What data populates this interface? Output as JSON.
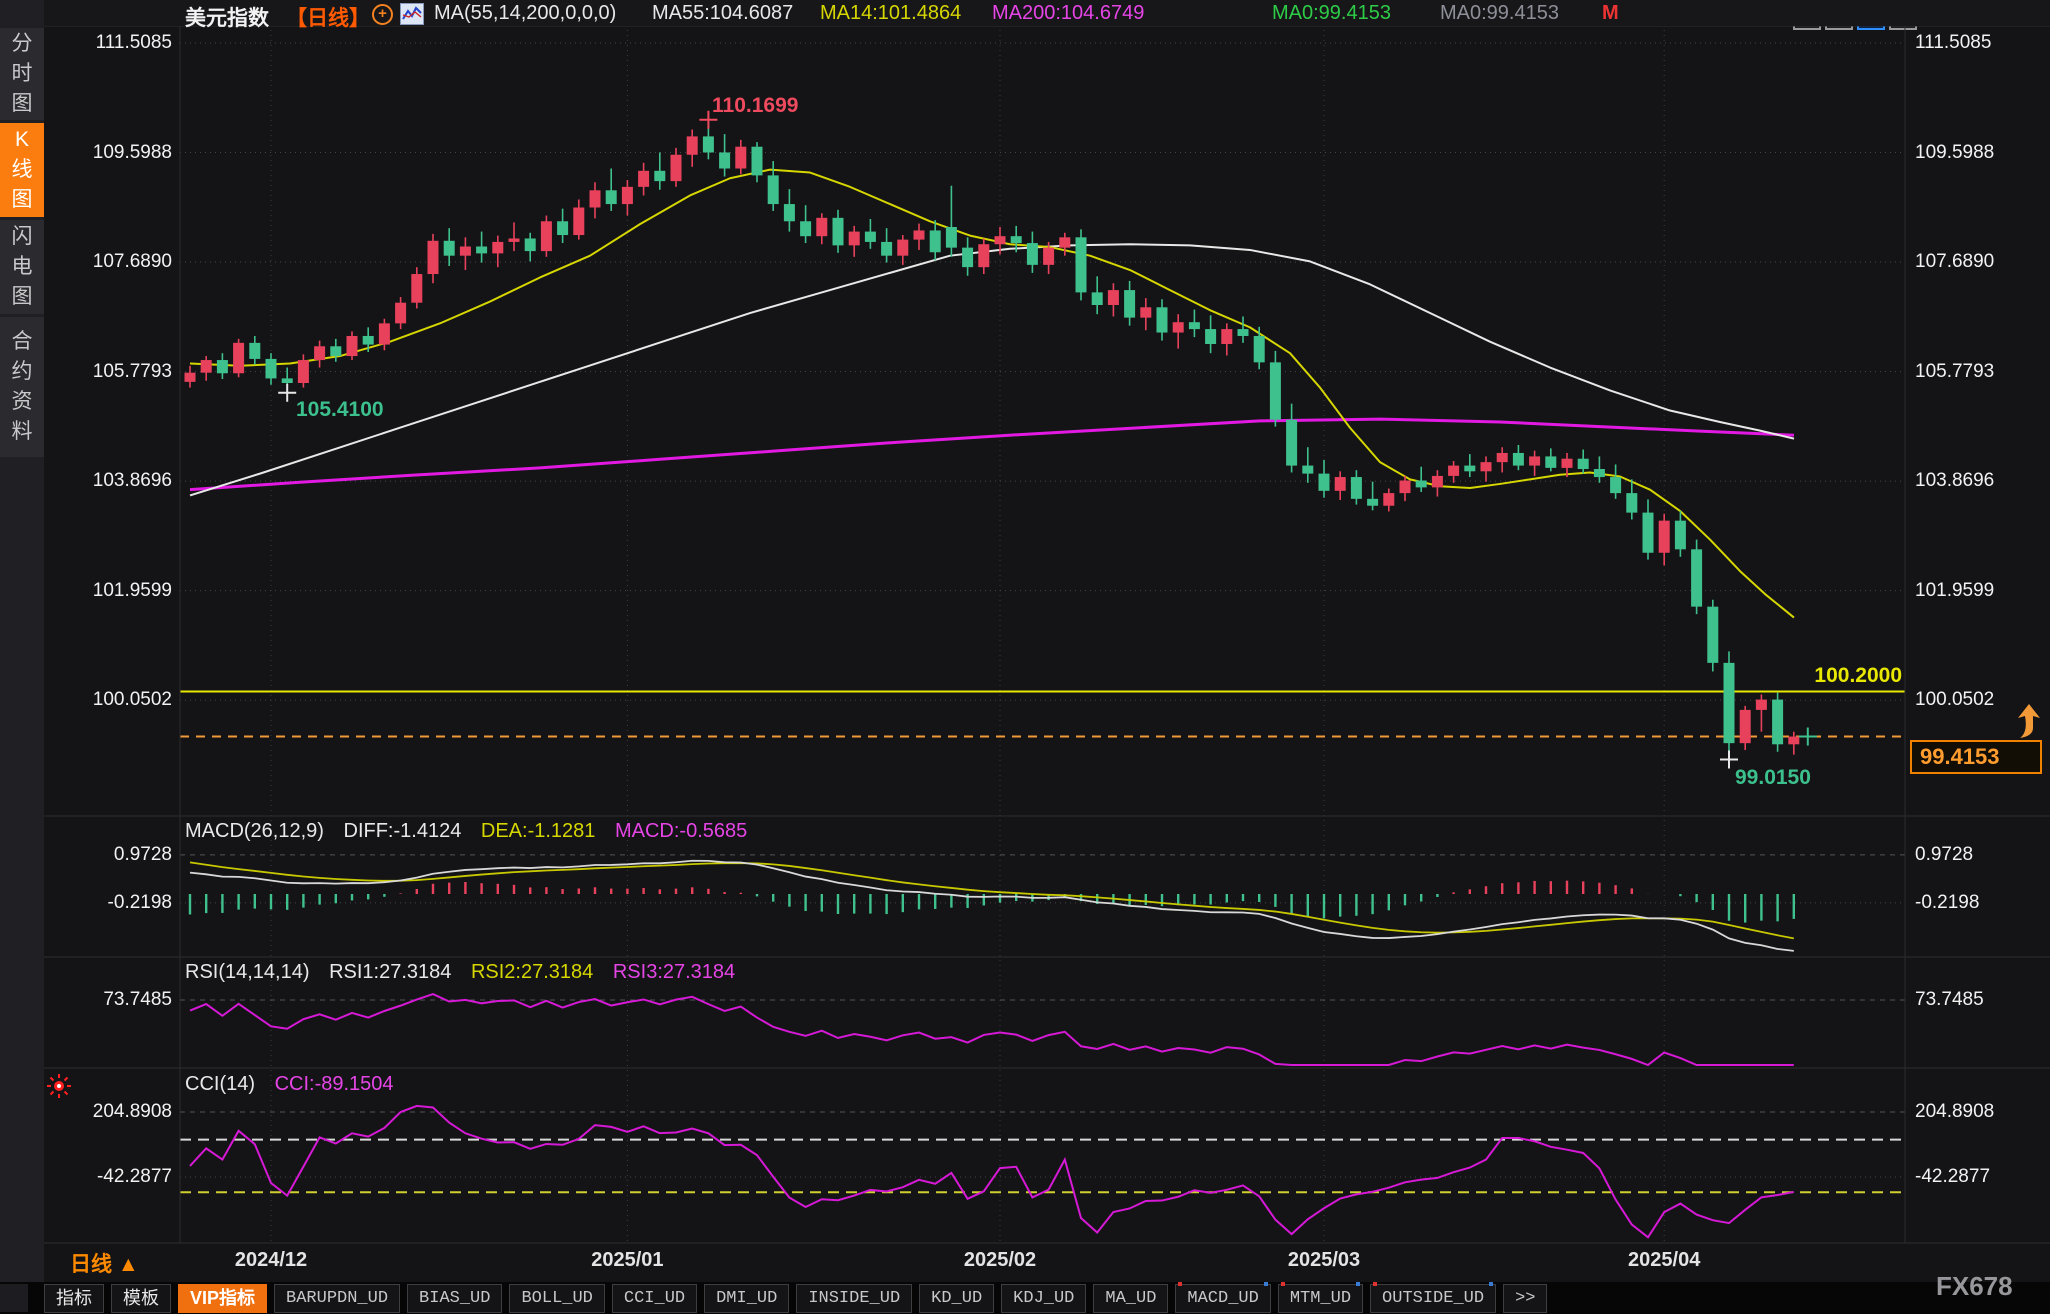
{
  "header": {
    "symbol": "美元指数",
    "period_tag": "【日线】",
    "ma_settings": "MA(55,14,200,0,0,0)",
    "ma55": "MA55:104.6087",
    "ma14": "MA14:101.4864",
    "ma200": "MA200:104.6749",
    "ma0_green": "MA0:99.4153",
    "ma0_gray": "MA0:99.4153",
    "m_flag": "M",
    "plus_icon": "circled-plus",
    "chart_icon": "mini-line-chart"
  },
  "top_icons": [
    {
      "name": "pan-cross-icon",
      "active": false
    },
    {
      "name": "axis-scale-icon",
      "active": false
    },
    {
      "name": "axis-play-icon",
      "active": true
    },
    {
      "name": "shift-right-icon",
      "active": false
    }
  ],
  "sidebar": {
    "tabs": [
      {
        "label": "分时图",
        "active": false
      },
      {
        "label": "K线图",
        "active": true
      },
      {
        "label": "闪电图",
        "active": false
      },
      {
        "label": "合约资料",
        "active": false
      }
    ]
  },
  "panels": {
    "macd": {
      "title": "MACD(26,12,9)",
      "diff": "DIFF:-1.4124",
      "dea": "DEA:-1.1281",
      "macd": "MACD:-0.5685"
    },
    "rsi": {
      "title": "RSI(14,14,14)",
      "rsi1": "RSI1:27.3184",
      "rsi2": "RSI2:27.3184",
      "rsi3": "RSI3:27.3184"
    },
    "cci": {
      "title": "CCI(14)",
      "cci": "CCI:-89.1504"
    }
  },
  "annotations": {
    "high_label": "110.1699",
    "dec_low_label": "105.4100",
    "apr_low_label": "99.0150",
    "yellow_line_label": "100.2000",
    "last_price_label": "99.4153"
  },
  "xaxis": {
    "period": "日线 ▲",
    "dates": [
      "2024/12",
      "2025/01",
      "2025/02",
      "2025/03",
      "2025/04"
    ]
  },
  "toolbar": {
    "tabs": [
      {
        "label": "指标",
        "cn": true
      },
      {
        "label": "模板",
        "cn": true
      },
      {
        "label": "VIP指标",
        "cn": true,
        "active": true
      },
      {
        "label": "BARUPDN_UD"
      },
      {
        "label": "BIAS_UD"
      },
      {
        "label": "BOLL_UD"
      },
      {
        "label": "CCI_UD"
      },
      {
        "label": "DMI_UD"
      },
      {
        "label": "INSIDE_UD"
      },
      {
        "label": "KD_UD"
      },
      {
        "label": "KDJ_UD"
      },
      {
        "label": "MA_UD"
      },
      {
        "label": "MACD_UD",
        "marked": true
      },
      {
        "label": "MTM_UD",
        "marked": true
      },
      {
        "label": "OUTSIDE_UD",
        "marked": true
      },
      {
        "label": ">>"
      }
    ]
  },
  "watermark": "FX678",
  "colors": {
    "up_candle": "#e8415c",
    "down_candle": "#3fc18e",
    "ma14": "#d6d600",
    "ma55": "#e8e8e8",
    "ma200": "#e219e2",
    "indicator_magenta": "#d619d6",
    "accent_orange": "#fb7d10",
    "yellow_line": "#e8e800",
    "orange_dashed": "#f29a38"
  },
  "chart_data": {
    "type": "candlestick",
    "title": "美元指数 日线",
    "price_axis_labels": [
      111.5085,
      109.5988,
      107.689,
      105.7793,
      103.8696,
      101.9599,
      100.0502
    ],
    "macd_axis_labels": [
      0.9728,
      -0.2198
    ],
    "rsi_axis_labels": [
      73.7485
    ],
    "cci_axis_labels": [
      204.8908,
      -42.2877
    ],
    "cci_ref_lines": [
      {
        "value": 100,
        "color": "#d8d8d8"
      },
      {
        "value": -100,
        "color": "#cfcf30"
      }
    ],
    "dates": [
      "2024/12",
      "2025/01",
      "2025/02",
      "2025/03",
      "2025/04"
    ],
    "date_candle_index": [
      5,
      27,
      50,
      70,
      91
    ],
    "hlines": [
      {
        "value": 100.2,
        "style": "solid",
        "color": "#e8e800"
      },
      {
        "value": 99.4153,
        "style": "dashed",
        "color": "#f29a38"
      }
    ],
    "markers": [
      {
        "type": "high",
        "candle": 32,
        "price": 110.1699,
        "color": "#ef4a5e"
      },
      {
        "type": "low",
        "candle": 6,
        "price": 105.41,
        "color": "#e8e8e8"
      },
      {
        "type": "low",
        "candle": 95,
        "price": 99.015,
        "color": "#e8e8e8"
      },
      {
        "type": "last",
        "candle": 99,
        "price": 99.4153,
        "color": "#3fc18e"
      }
    ],
    "ma_values": {
      "ma55": 104.6087,
      "ma14": 101.4864,
      "ma200": 104.6749,
      "ma0": 99.4153
    },
    "indicator_values": {
      "macd": {
        "diff": -1.4124,
        "dea": -1.1281,
        "hist": -0.5685
      },
      "rsi": [
        27.3184,
        27.3184,
        27.3184
      ],
      "cci": -89.1504
    },
    "candles": [
      [
        105.6,
        105.88,
        105.5,
        105.76
      ],
      [
        105.76,
        106.05,
        105.62,
        105.98
      ],
      [
        105.98,
        106.1,
        105.65,
        105.75
      ],
      [
        105.75,
        106.35,
        105.68,
        106.28
      ],
      [
        106.28,
        106.4,
        105.9,
        106.0
      ],
      [
        106.0,
        106.1,
        105.55,
        105.66
      ],
      [
        105.66,
        105.85,
        105.41,
        105.58
      ],
      [
        105.58,
        106.08,
        105.5,
        105.98
      ],
      [
        105.98,
        106.32,
        105.85,
        106.22
      ],
      [
        106.22,
        106.35,
        105.95,
        106.05
      ],
      [
        106.05,
        106.48,
        105.98,
        106.4
      ],
      [
        106.4,
        106.55,
        106.12,
        106.25
      ],
      [
        106.25,
        106.7,
        106.15,
        106.62
      ],
      [
        106.62,
        107.08,
        106.52,
        106.98
      ],
      [
        106.98,
        107.6,
        106.88,
        107.48
      ],
      [
        107.48,
        108.18,
        107.32,
        108.06
      ],
      [
        108.06,
        108.28,
        107.62,
        107.8
      ],
      [
        107.8,
        108.12,
        107.55,
        107.96
      ],
      [
        107.96,
        108.22,
        107.68,
        107.84
      ],
      [
        107.84,
        108.15,
        107.6,
        108.04
      ],
      [
        108.04,
        108.38,
        107.88,
        108.1
      ],
      [
        108.1,
        108.2,
        107.7,
        107.88
      ],
      [
        107.88,
        108.5,
        107.78,
        108.4
      ],
      [
        108.4,
        108.62,
        108.02,
        108.16
      ],
      [
        108.16,
        108.78,
        108.08,
        108.64
      ],
      [
        108.64,
        109.08,
        108.45,
        108.94
      ],
      [
        108.94,
        109.32,
        108.58,
        108.7
      ],
      [
        108.7,
        109.12,
        108.5,
        109.0
      ],
      [
        109.0,
        109.42,
        108.85,
        109.28
      ],
      [
        109.28,
        109.6,
        108.95,
        109.1
      ],
      [
        109.1,
        109.68,
        109.0,
        109.56
      ],
      [
        109.56,
        110.0,
        109.35,
        109.88
      ],
      [
        109.88,
        110.17,
        109.48,
        109.6
      ],
      [
        109.6,
        109.92,
        109.18,
        109.32
      ],
      [
        109.32,
        109.82,
        109.22,
        109.7
      ],
      [
        109.7,
        109.78,
        109.08,
        109.2
      ],
      [
        109.2,
        109.45,
        108.58,
        108.7
      ],
      [
        108.7,
        108.96,
        108.22,
        108.4
      ],
      [
        108.4,
        108.68,
        108.02,
        108.14
      ],
      [
        108.14,
        108.54,
        108.0,
        108.46
      ],
      [
        108.46,
        108.6,
        107.85,
        107.98
      ],
      [
        107.98,
        108.32,
        107.78,
        108.22
      ],
      [
        108.22,
        108.44,
        107.92,
        108.04
      ],
      [
        108.04,
        108.28,
        107.68,
        107.8
      ],
      [
        107.8,
        108.16,
        107.64,
        108.08
      ],
      [
        108.08,
        108.36,
        107.9,
        108.24
      ],
      [
        108.24,
        108.42,
        107.72,
        107.86
      ],
      [
        108.3,
        109.02,
        107.78,
        107.94
      ],
      [
        107.94,
        108.12,
        107.45,
        107.6
      ],
      [
        107.6,
        108.1,
        107.48,
        108.0
      ],
      [
        108.0,
        108.3,
        107.82,
        108.14
      ],
      [
        108.14,
        108.32,
        107.86,
        108.02
      ],
      [
        108.02,
        108.22,
        107.5,
        107.64
      ],
      [
        107.64,
        108.04,
        107.48,
        107.94
      ],
      [
        107.94,
        108.2,
        107.8,
        108.12
      ],
      [
        108.12,
        108.26,
        107.02,
        107.16
      ],
      [
        107.16,
        107.44,
        106.78,
        106.94
      ],
      [
        106.94,
        107.32,
        106.74,
        107.2
      ],
      [
        107.2,
        107.36,
        106.58,
        106.72
      ],
      [
        106.72,
        107.06,
        106.5,
        106.9
      ],
      [
        106.9,
        107.04,
        106.32,
        106.46
      ],
      [
        106.46,
        106.78,
        106.18,
        106.64
      ],
      [
        106.64,
        106.86,
        106.38,
        106.52
      ],
      [
        106.52,
        106.76,
        106.1,
        106.26
      ],
      [
        106.26,
        106.62,
        106.06,
        106.52
      ],
      [
        106.52,
        106.74,
        106.28,
        106.4
      ],
      [
        106.4,
        106.56,
        105.82,
        105.94
      ],
      [
        105.94,
        106.14,
        104.82,
        104.94
      ],
      [
        104.94,
        105.22,
        104.02,
        104.14
      ],
      [
        104.14,
        104.46,
        103.84,
        104.0
      ],
      [
        104.0,
        104.24,
        103.58,
        103.7
      ],
      [
        103.7,
        104.04,
        103.54,
        103.94
      ],
      [
        103.94,
        104.06,
        103.46,
        103.56
      ],
      [
        103.56,
        103.86,
        103.36,
        103.44
      ],
      [
        103.44,
        103.74,
        103.34,
        103.66
      ],
      [
        103.66,
        103.96,
        103.52,
        103.88
      ],
      [
        103.88,
        104.12,
        103.68,
        103.76
      ],
      [
        103.76,
        104.06,
        103.6,
        103.96
      ],
      [
        103.96,
        104.22,
        103.84,
        104.14
      ],
      [
        104.14,
        104.34,
        103.94,
        104.04
      ],
      [
        104.04,
        104.3,
        103.86,
        104.2
      ],
      [
        104.2,
        104.46,
        104.02,
        104.36
      ],
      [
        104.36,
        104.5,
        104.06,
        104.14
      ],
      [
        104.14,
        104.4,
        103.96,
        104.3
      ],
      [
        104.3,
        104.44,
        104.04,
        104.1
      ],
      [
        104.1,
        104.36,
        103.94,
        104.26
      ],
      [
        104.26,
        104.42,
        104.0,
        104.08
      ],
      [
        104.08,
        104.3,
        103.84,
        103.94
      ],
      [
        103.94,
        104.16,
        103.56,
        103.66
      ],
      [
        103.66,
        103.9,
        103.2,
        103.32
      ],
      [
        103.32,
        103.55,
        102.5,
        102.62
      ],
      [
        102.62,
        103.3,
        102.4,
        103.18
      ],
      [
        103.18,
        103.35,
        102.55,
        102.68
      ],
      [
        102.68,
        102.85,
        101.55,
        101.68
      ],
      [
        101.68,
        101.8,
        100.55,
        100.7
      ],
      [
        100.7,
        100.9,
        99.015,
        99.3
      ],
      [
        99.3,
        99.95,
        99.18,
        99.88
      ],
      [
        99.88,
        100.15,
        99.5,
        100.06
      ],
      [
        100.06,
        100.18,
        99.15,
        99.28
      ],
      [
        99.28,
        99.5,
        99.1,
        99.4153
      ]
    ],
    "ma14_points": [
      [
        190,
        105.92
      ],
      [
        240,
        105.88
      ],
      [
        290,
        105.92
      ],
      [
        340,
        106.05
      ],
      [
        390,
        106.3
      ],
      [
        440,
        106.62
      ],
      [
        490,
        107.0
      ],
      [
        540,
        107.42
      ],
      [
        590,
        107.8
      ],
      [
        640,
        108.35
      ],
      [
        690,
        108.85
      ],
      [
        730,
        109.15
      ],
      [
        770,
        109.3
      ],
      [
        810,
        109.25
      ],
      [
        850,
        109.0
      ],
      [
        890,
        108.7
      ],
      [
        930,
        108.4
      ],
      [
        970,
        108.15
      ],
      [
        1010,
        108.0
      ],
      [
        1050,
        107.95
      ],
      [
        1090,
        107.8
      ],
      [
        1130,
        107.55
      ],
      [
        1170,
        107.2
      ],
      [
        1210,
        106.85
      ],
      [
        1250,
        106.55
      ],
      [
        1290,
        106.1
      ],
      [
        1320,
        105.5
      ],
      [
        1350,
        104.8
      ],
      [
        1380,
        104.2
      ],
      [
        1410,
        103.9
      ],
      [
        1440,
        103.78
      ],
      [
        1470,
        103.75
      ],
      [
        1500,
        103.82
      ],
      [
        1530,
        103.9
      ],
      [
        1560,
        103.98
      ],
      [
        1590,
        104.02
      ],
      [
        1620,
        103.95
      ],
      [
        1650,
        103.72
      ],
      [
        1680,
        103.35
      ],
      [
        1710,
        102.85
      ],
      [
        1740,
        102.3
      ],
      [
        1765,
        101.9
      ],
      [
        1794,
        101.49
      ]
    ],
    "ma55_points": [
      [
        190,
        103.62
      ],
      [
        260,
        104.0
      ],
      [
        330,
        104.4
      ],
      [
        400,
        104.8
      ],
      [
        470,
        105.2
      ],
      [
        540,
        105.6
      ],
      [
        610,
        106.0
      ],
      [
        680,
        106.4
      ],
      [
        750,
        106.8
      ],
      [
        820,
        107.15
      ],
      [
        890,
        107.5
      ],
      [
        950,
        107.8
      ],
      [
        1010,
        107.92
      ],
      [
        1070,
        107.98
      ],
      [
        1130,
        108.0
      ],
      [
        1190,
        107.98
      ],
      [
        1250,
        107.9
      ],
      [
        1310,
        107.7
      ],
      [
        1370,
        107.3
      ],
      [
        1430,
        106.8
      ],
      [
        1490,
        106.3
      ],
      [
        1550,
        105.85
      ],
      [
        1610,
        105.45
      ],
      [
        1670,
        105.1
      ],
      [
        1720,
        104.9
      ],
      [
        1760,
        104.75
      ],
      [
        1794,
        104.61
      ]
    ],
    "ma200_points": [
      [
        190,
        103.72
      ],
      [
        300,
        103.85
      ],
      [
        420,
        103.98
      ],
      [
        540,
        104.1
      ],
      [
        660,
        104.25
      ],
      [
        780,
        104.4
      ],
      [
        900,
        104.55
      ],
      [
        1020,
        104.68
      ],
      [
        1140,
        104.8
      ],
      [
        1260,
        104.92
      ],
      [
        1380,
        104.95
      ],
      [
        1500,
        104.9
      ],
      [
        1600,
        104.82
      ],
      [
        1700,
        104.74
      ],
      [
        1794,
        104.67
      ]
    ]
  }
}
